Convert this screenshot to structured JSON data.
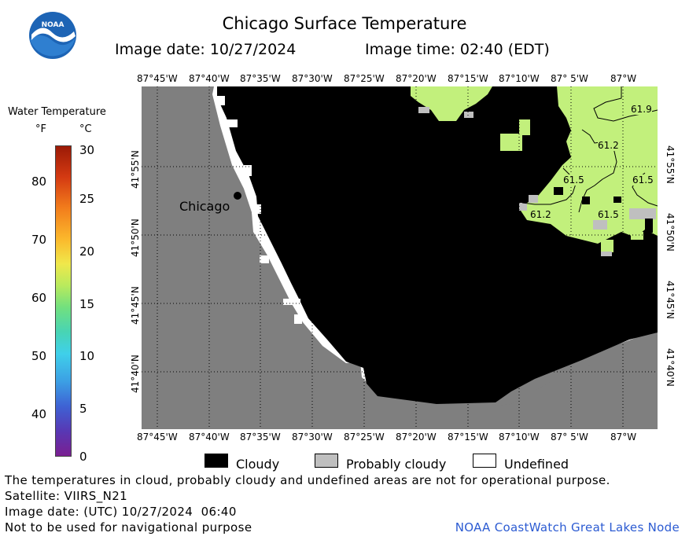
{
  "header": {
    "title": "Chicago Surface Temperature",
    "image_date": "Image date: 10/27/2024",
    "image_time": "Image time: 02:40 (EDT)",
    "logo_text": "NOAA"
  },
  "scale": {
    "title": "Water Temperature",
    "unit_f": "°F",
    "unit_c": "°C",
    "fahrenheit_ticks": [
      "80",
      "70",
      "60",
      "50",
      "40"
    ],
    "celsius_ticks": [
      "30",
      "25",
      "20",
      "15",
      "10",
      "5",
      "0"
    ]
  },
  "map": {
    "lon_labels": [
      "87°45'W",
      "87°40'W",
      "87°35'W",
      "87°30'W",
      "87°25'W",
      "87°20'W",
      "87°15'W",
      "87°10'W",
      "87° 5'W",
      "87°W"
    ],
    "lat_labels": [
      "41°55'N",
      "41°50'N",
      "41°45'N",
      "41°40'N"
    ],
    "city_label": "Chicago",
    "contour_labels": [
      "61.9",
      "61.2",
      "61.5",
      "61.5",
      "61.2",
      "61.5"
    ],
    "colors": {
      "land": "#7f7f7f",
      "cloudy": "#000000",
      "probably_cloudy": "#bfbfbf",
      "undefined": "#ffffff",
      "water_61": "#c9f27c",
      "water_62": "#b6ee68"
    }
  },
  "legend": {
    "cloudy": "Cloudy",
    "probably_cloudy": "Probably cloudy",
    "undefined": "Undefined"
  },
  "footer": {
    "disclaimer": "The temperatures in cloud, probably cloudy and undefined areas are not for operational purpose.",
    "satellite": "Satellite: VIIRS_N21",
    "image_date_utc": "Image date: (UTC) 10/27/2024  06:40",
    "navigation": "Not to be used for navigational purpose",
    "node": "NOAA CoastWatch Great Lakes Node"
  }
}
